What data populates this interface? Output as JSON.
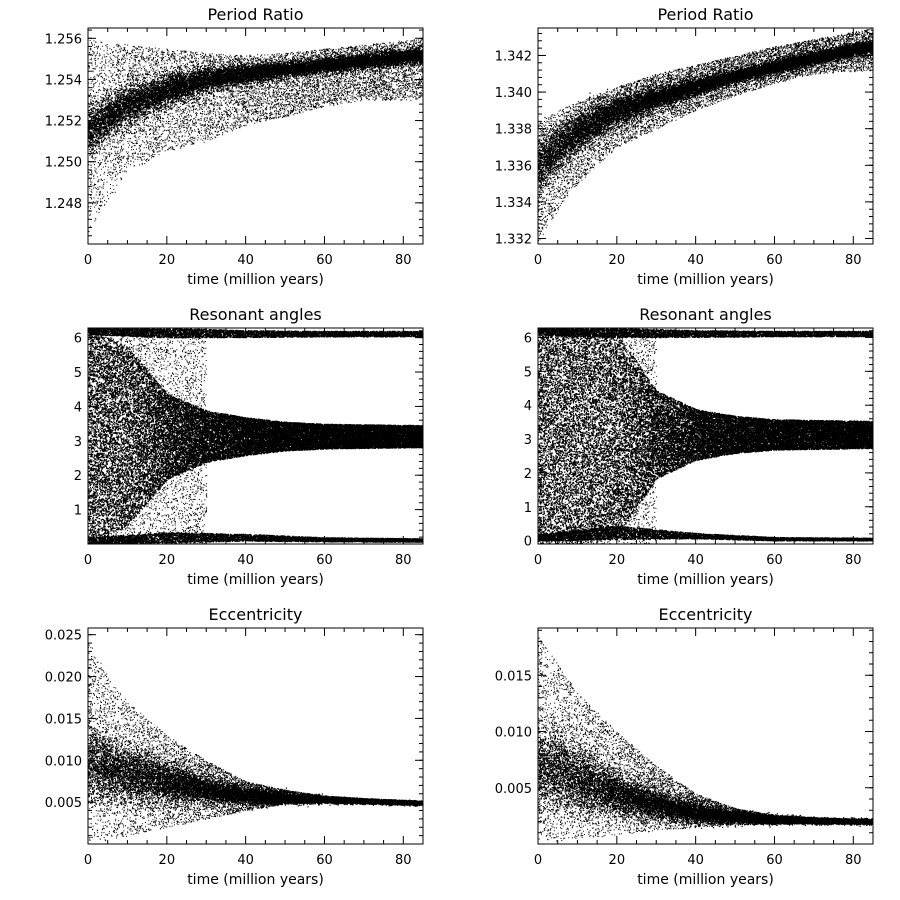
{
  "figure": {
    "background": "#ffffff",
    "ink": "#000000",
    "marker_color": "#ffffff"
  },
  "chart_data": [
    {
      "type": "scatter",
      "title": "Period Ratio",
      "xlabel": "time (million years)",
      "ylabel": "",
      "xlim": [
        0,
        85
      ],
      "ylim": [
        1.246,
        1.2565
      ],
      "xticks": [
        0,
        20,
        40,
        60,
        80
      ],
      "yticks": [
        1.248,
        1.25,
        1.252,
        1.254,
        1.256
      ],
      "ytick_labels": [
        "1.248",
        "1.250",
        "1.252",
        "1.254",
        "1.256"
      ],
      "density": "dense",
      "envelope": {
        "t": [
          0,
          5,
          10,
          20,
          30,
          40,
          50,
          60,
          70,
          85
        ],
        "center": [
          1.2515,
          1.2522,
          1.2528,
          1.2535,
          1.254,
          1.2543,
          1.2545,
          1.2547,
          1.2549,
          1.2552
        ],
        "upper": [
          1.256,
          1.2558,
          1.2557,
          1.2555,
          1.2553,
          1.2552,
          1.2553,
          1.2555,
          1.2557,
          1.256
        ],
        "lower": [
          1.2465,
          1.248,
          1.2495,
          1.2505,
          1.251,
          1.2518,
          1.2522,
          1.2527,
          1.253,
          1.253
        ],
        "core_halfwidth": [
          0.001,
          0.0009,
          0.0008,
          0.0006,
          0.0005,
          0.0004,
          0.0003,
          0.0003,
          0.0003,
          0.0003
        ]
      },
      "markers": {
        "symbol": "×",
        "x": [
          50,
          54,
          58,
          62,
          66,
          70,
          74,
          78,
          82
        ],
        "y": [
          1.2544,
          1.2545,
          1.2546,
          1.2547,
          1.2548,
          1.2549,
          1.255,
          1.2551,
          1.2552
        ]
      }
    },
    {
      "type": "scatter",
      "title": "Period Ratio",
      "xlabel": "time (million years)",
      "ylabel": "",
      "xlim": [
        0,
        85
      ],
      "ylim": [
        1.3317,
        1.3435
      ],
      "xticks": [
        0,
        20,
        40,
        60,
        80
      ],
      "yticks": [
        1.332,
        1.334,
        1.336,
        1.338,
        1.34,
        1.342
      ],
      "ytick_labels": [
        "1.332",
        "1.334",
        "1.336",
        "1.338",
        "1.340",
        "1.342"
      ],
      "density": "dense",
      "envelope": {
        "t": [
          0,
          5,
          10,
          20,
          30,
          40,
          50,
          60,
          70,
          85
        ],
        "center": [
          1.336,
          1.337,
          1.3378,
          1.339,
          1.3397,
          1.3403,
          1.3409,
          1.3414,
          1.3419,
          1.3425
        ],
        "upper": [
          1.3385,
          1.339,
          1.3395,
          1.3403,
          1.341,
          1.3415,
          1.342,
          1.3425,
          1.3429,
          1.3435
        ],
        "lower": [
          1.3318,
          1.3335,
          1.335,
          1.337,
          1.338,
          1.339,
          1.3398,
          1.3405,
          1.341,
          1.3412
        ],
        "core_halfwidth": [
          0.0012,
          0.001,
          0.0009,
          0.0007,
          0.0005,
          0.0004,
          0.0003,
          0.0003,
          0.0003,
          0.0003
        ]
      },
      "markers": {
        "symbol": "×",
        "x": [
          50,
          54,
          58,
          62,
          66,
          70,
          74,
          78,
          82
        ],
        "y": [
          1.3409,
          1.3411,
          1.3413,
          1.3415,
          1.3417,
          1.3419,
          1.3421,
          1.3423,
          1.3425
        ]
      }
    },
    {
      "type": "scatter",
      "title": "Resonant angles",
      "xlabel": "time (million years)",
      "ylabel": "",
      "xlim": [
        0,
        85
      ],
      "ylim": [
        0,
        6.28
      ],
      "xticks": [
        0,
        20,
        40,
        60,
        80
      ],
      "yticks": [
        1,
        2,
        3,
        4,
        5,
        6
      ],
      "ytick_labels": [
        "1",
        "2",
        "3",
        "4",
        "5",
        "6"
      ],
      "density": "very dense",
      "bands": [
        {
          "t": [
            0,
            10,
            20,
            30,
            40,
            50,
            60,
            85
          ],
          "center": [
            3.14,
            3.14,
            3.14,
            3.14,
            3.14,
            3.14,
            3.14,
            3.14
          ],
          "halfwidth": [
            3.14,
            2.6,
            1.25,
            0.75,
            0.55,
            0.42,
            0.36,
            0.32
          ]
        },
        {
          "t": [
            0,
            20,
            40,
            60,
            85
          ],
          "center": [
            6.2,
            6.15,
            6.12,
            6.12,
            6.12
          ],
          "halfwidth": [
            0.1,
            0.14,
            0.1,
            0.08,
            0.08
          ]
        },
        {
          "t": [
            0,
            20,
            40,
            60,
            85
          ],
          "center": [
            0.1,
            0.2,
            0.2,
            0.14,
            0.12
          ],
          "halfwidth": [
            0.1,
            0.15,
            0.1,
            0.06,
            0.05
          ]
        }
      ]
    },
    {
      "type": "scatter",
      "title": "Resonant angles",
      "xlabel": "time (million years)",
      "ylabel": "",
      "xlim": [
        0,
        85
      ],
      "ylim": [
        -0.1,
        6.28
      ],
      "xticks": [
        0,
        20,
        40,
        60,
        80
      ],
      "yticks": [
        0,
        1,
        2,
        3,
        4,
        5,
        6
      ],
      "ytick_labels": [
        "0",
        "1",
        "2",
        "3",
        "4",
        "5",
        "6"
      ],
      "density": "very dense",
      "bands": [
        {
          "t": [
            0,
            10,
            20,
            26,
            30,
            40,
            50,
            60,
            85
          ],
          "center": [
            3.14,
            3.14,
            3.14,
            3.14,
            3.14,
            3.14,
            3.14,
            3.14,
            3.14
          ],
          "halfwidth": [
            3.25,
            3.25,
            3.0,
            2.0,
            1.3,
            0.75,
            0.55,
            0.45,
            0.4
          ]
        },
        {
          "t": [
            0,
            20,
            40,
            60,
            85
          ],
          "center": [
            6.18,
            6.15,
            6.12,
            6.12,
            6.12
          ],
          "halfwidth": [
            0.1,
            0.14,
            0.1,
            0.08,
            0.08
          ]
        },
        {
          "t": [
            0,
            20,
            40,
            60,
            85
          ],
          "center": [
            0.1,
            0.25,
            0.15,
            0.06,
            0.05
          ],
          "halfwidth": [
            0.1,
            0.2,
            0.08,
            0.05,
            0.04
          ]
        }
      ]
    },
    {
      "type": "scatter",
      "title": "Eccentricity",
      "xlabel": "time (million years)",
      "ylabel": "",
      "xlim": [
        0,
        85
      ],
      "ylim": [
        0,
        0.0258
      ],
      "xticks": [
        0,
        20,
        40,
        60,
        80
      ],
      "yticks": [
        0.005,
        0.01,
        0.015,
        0.02,
        0.025
      ],
      "ytick_labels": [
        "0.005",
        "0.010",
        "0.015",
        "0.020",
        "0.025"
      ],
      "density": "dense",
      "envelope": {
        "t": [
          0,
          5,
          10,
          20,
          30,
          40,
          50,
          60,
          70,
          85
        ],
        "center": [
          0.01,
          0.009,
          0.0085,
          0.0075,
          0.0065,
          0.0058,
          0.0055,
          0.0053,
          0.0051,
          0.0049
        ],
        "upper": [
          0.0245,
          0.02,
          0.017,
          0.013,
          0.01,
          0.0075,
          0.0065,
          0.0058,
          0.0055,
          0.0052
        ],
        "lower": [
          0.0003,
          0.0005,
          0.001,
          0.002,
          0.003,
          0.004,
          0.0048,
          0.005,
          0.0049,
          0.0047
        ],
        "core_halfwidth": [
          0.004,
          0.0032,
          0.0028,
          0.002,
          0.0012,
          0.0008,
          0.0005,
          0.0003,
          0.0002,
          0.0002
        ]
      }
    },
    {
      "type": "scatter",
      "title": "Eccentricity",
      "xlabel": "time (million years)",
      "ylabel": "",
      "xlim": [
        0,
        85
      ],
      "ylim": [
        0,
        0.0192
      ],
      "xticks": [
        0,
        20,
        40,
        60,
        80
      ],
      "yticks": [
        0.005,
        0.01,
        0.015
      ],
      "ytick_labels": [
        "0.005",
        "0.010",
        "0.015"
      ],
      "density": "dense",
      "envelope": {
        "t": [
          0,
          5,
          10,
          20,
          30,
          40,
          50,
          60,
          70,
          85
        ],
        "center": [
          0.007,
          0.0065,
          0.0058,
          0.0045,
          0.0035,
          0.0028,
          0.0024,
          0.0022,
          0.0021,
          0.002
        ],
        "upper": [
          0.0185,
          0.016,
          0.0135,
          0.01,
          0.007,
          0.0045,
          0.0032,
          0.0026,
          0.0024,
          0.0022
        ],
        "lower": [
          0.0002,
          0.0003,
          0.0005,
          0.0008,
          0.0012,
          0.0015,
          0.0017,
          0.0018,
          0.0018,
          0.0018
        ],
        "core_halfwidth": [
          0.003,
          0.0028,
          0.0024,
          0.0016,
          0.001,
          0.0007,
          0.0004,
          0.0003,
          0.0002,
          0.0002
        ]
      }
    }
  ]
}
